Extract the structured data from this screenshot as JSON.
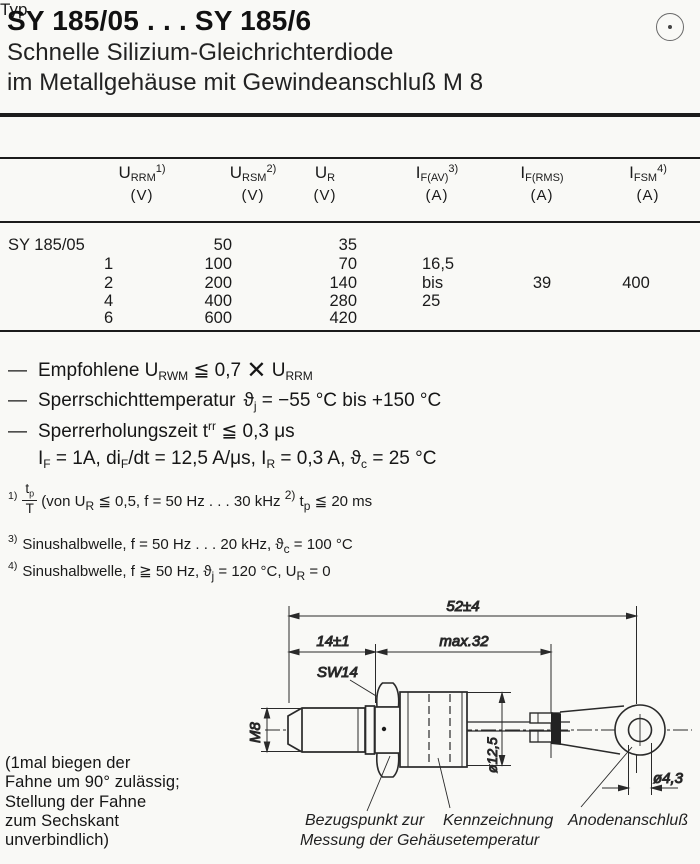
{
  "header": {
    "title": "SY 185/05 . . . SY 185/6",
    "subtitle_line1": "Schnelle Silizium-Gleichrichterdiode",
    "subtitle_line2": "im Metallgehäuse mit Gewindeanschluß M 8"
  },
  "table": {
    "headers": [
      {
        "label": "Typ"
      },
      {
        "sym": "U",
        "sub": "RRM",
        "sup": "1)",
        "unit": "(V)"
      },
      {
        "sym": "U",
        "sub": "RSM",
        "sup": "2)",
        "unit": "(V)"
      },
      {
        "sym": "U",
        "sub": "R",
        "sup": "",
        "unit": "(V)"
      },
      {
        "sym": "I",
        "sub": "F(AV)",
        "sup": "3)",
        "unit": "(A)"
      },
      {
        "sym": "I",
        "sub": "F(RMS)",
        "sup": "",
        "unit": "(A)"
      },
      {
        "sym": "I",
        "sub": "FSM",
        "sup": "4)",
        "unit": "(A)"
      }
    ],
    "rows": [
      {
        "typ": "SY 185/05",
        "sub": "",
        "urrm": "50",
        "ur": "35",
        "ifav": "",
        "ifrms": "",
        "ifsm": ""
      },
      {
        "typ": "",
        "sub": "1",
        "urrm": "100",
        "ur": "70",
        "ifav": "16,5",
        "ifrms": "",
        "ifsm": ""
      },
      {
        "typ": "",
        "sub": "2",
        "urrm": "200",
        "ur": "140",
        "ifav": "bis",
        "ifrms": "39",
        "ifsm": "400"
      },
      {
        "typ": "",
        "sub": "4",
        "urrm": "400",
        "ur": "280",
        "ifav": "25",
        "ifrms": "",
        "ifsm": ""
      },
      {
        "typ": "",
        "sub": "6",
        "urrm": "600",
        "ur": "420",
        "ifav": "",
        "ifrms": "",
        "ifsm": ""
      }
    ]
  },
  "notes": [
    {
      "dash": "—",
      "segments": [
        {
          "t": "Empfohlene U"
        },
        {
          "t": "RWM",
          "s": "sub"
        },
        {
          "t": " ≦ 0,7 "
        },
        {
          "t": "✕",
          "s": "x"
        },
        {
          "t": " U"
        },
        {
          "t": "RRM",
          "s": "sub"
        }
      ]
    },
    {
      "dash": "—",
      "segments": [
        {
          "t": "Sperrschichttemperatur"
        },
        {
          "t": "",
          "s": "gap"
        },
        {
          "t": "ϑ"
        },
        {
          "t": "j",
          "s": "sub"
        },
        {
          "t": " = −55 °C bis +150 °C"
        }
      ]
    },
    {
      "dash": "—",
      "segments": [
        {
          "t": "Sperrerholungszeit t"
        },
        {
          "t": "rr",
          "s": "sup"
        },
        {
          "t": " ≦ 0,3 μs"
        }
      ]
    },
    {
      "dash": "",
      "segments": [
        {
          "t": "I"
        },
        {
          "t": "F",
          "s": "sub"
        },
        {
          "t": " = 1A, di"
        },
        {
          "t": "F",
          "s": "sub"
        },
        {
          "t": "/dt = 12,5 A/μs, I"
        },
        {
          "t": "R",
          "s": "sub"
        },
        {
          "t": " = 0,3 A, ϑ"
        },
        {
          "t": "c",
          "s": "sub"
        },
        {
          "t": " = 25 °C"
        }
      ]
    }
  ],
  "footnotes": {
    "f1": {
      "marker": "1)",
      "num_main": "t",
      "num_sub": "p",
      "den": "T",
      "rest": [
        {
          "t": " (von U"
        },
        {
          "t": "R",
          "s": "sub"
        },
        {
          "t": " ≦ 0,5, f = 50 Hz . . . 30 kHz "
        },
        {
          "t": "2)",
          "s": "sup"
        },
        {
          "t": " t"
        },
        {
          "t": "p",
          "s": "sub"
        },
        {
          "t": " ≦ 20 ms"
        }
      ]
    },
    "f3": {
      "marker": "3)",
      "segments": [
        {
          "t": "Sinushalbwelle, f = 50 Hz . . . 20 kHz, ϑ"
        },
        {
          "t": "c",
          "s": "sub"
        },
        {
          "t": " = 100 °C"
        }
      ]
    },
    "f4": {
      "marker": "4)",
      "segments": [
        {
          "t": "Sinushalbwelle, f ≧ 50 Hz, ϑ"
        },
        {
          "t": "j",
          "s": "sub"
        },
        {
          "t": " = 120 °C, U"
        },
        {
          "t": "R",
          "s": "sub"
        },
        {
          "t": " = 0"
        }
      ]
    }
  },
  "drawing": {
    "dim_overall": "52±4",
    "dim_thread_len": "14±1",
    "dim_body_len": "max.32",
    "wrench_size": "SW14",
    "thread_size": "M8",
    "body_dia": "ø12,5",
    "hole_dia": "ø4,3",
    "label_ref_line1": "Bezugspunkt zur",
    "label_ref_line2": "Messung der Gehäusetemperatur",
    "label_marking": "Kennzeichnung",
    "label_anode": "Anodenanschluß"
  },
  "side_note": {
    "lines": [
      "(1mal biegen der",
      "Fahne um 90° zulässig;",
      "Stellung der Fahne",
      "zum Sechskant",
      "unverbindlich)"
    ]
  }
}
